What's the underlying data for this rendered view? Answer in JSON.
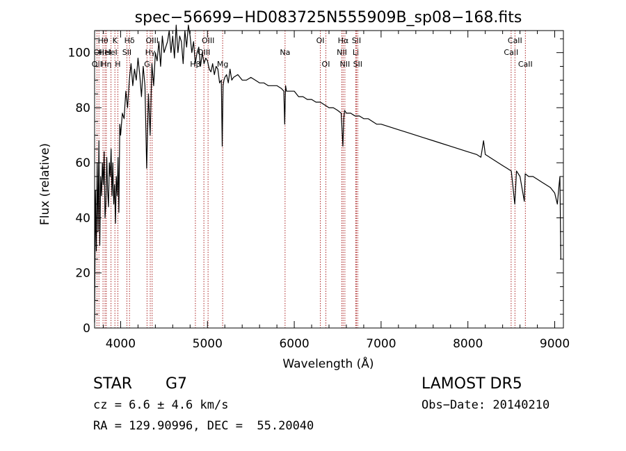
{
  "chart_data": {
    "type": "line",
    "title": "spec−56699−HD083725N555909B_sp08−168.fits",
    "xlabel": "Wavelength (Å)",
    "ylabel": "Flux (relative)",
    "xlim": [
      3700,
      9100
    ],
    "ylim": [
      0,
      108
    ],
    "xticks": [
      4000,
      5000,
      6000,
      7000,
      8000,
      9000
    ],
    "yticks": [
      0,
      20,
      40,
      60,
      80,
      100
    ],
    "grid": false,
    "line_color": "#000000",
    "marker_color": "#aa2222",
    "series": [
      {
        "x": [
          3700,
          3710,
          3720,
          3730,
          3740,
          3750,
          3760,
          3770,
          3780,
          3790,
          3800,
          3810,
          3820,
          3830,
          3840,
          3850,
          3860,
          3870,
          3880,
          3890,
          3900,
          3910,
          3920,
          3930,
          3940,
          3950,
          3960,
          3970,
          3980,
          3990,
          4000,
          4020,
          4040,
          4060,
          4080,
          4100,
          4120,
          4140,
          4160,
          4180,
          4200,
          4220,
          4240,
          4260,
          4280,
          4300,
          4320,
          4340,
          4360,
          4380,
          4400,
          4420,
          4440,
          4460,
          4480,
          4500,
          4520,
          4540,
          4560,
          4580,
          4600,
          4620,
          4640,
          4660,
          4680,
          4700,
          4720,
          4740,
          4760,
          4780,
          4800,
          4820,
          4840,
          4860,
          4880,
          4900,
          4920,
          4940,
          4960,
          4980,
          5000,
          5020,
          5040,
          5060,
          5080,
          5100,
          5120,
          5140,
          5160,
          5170,
          5180,
          5190,
          5200,
          5220,
          5240,
          5260,
          5280,
          5300,
          5350,
          5400,
          5450,
          5500,
          5550,
          5600,
          5650,
          5700,
          5750,
          5800,
          5850,
          5880,
          5890,
          5900,
          5910,
          5950,
          6000,
          6050,
          6100,
          6150,
          6200,
          6250,
          6300,
          6350,
          6400,
          6450,
          6500,
          6540,
          6560,
          6570,
          6580,
          6600,
          6650,
          6700,
          6750,
          6800,
          6850,
          6900,
          6950,
          7000,
          7100,
          7200,
          7300,
          7400,
          7500,
          7600,
          7700,
          7800,
          7900,
          8000,
          8100,
          8150,
          8180,
          8200,
          8250,
          8300,
          8400,
          8450,
          8500,
          8540,
          8560,
          8600,
          8650,
          8660,
          8700,
          8750,
          8800,
          8850,
          8900,
          8950,
          9000,
          9030,
          9050,
          9060,
          9070
        ],
        "y": [
          2,
          50,
          28,
          60,
          35,
          68,
          30,
          55,
          48,
          60,
          52,
          64,
          40,
          45,
          62,
          50,
          44,
          60,
          55,
          65,
          48,
          60,
          45,
          52,
          38,
          55,
          48,
          62,
          42,
          74,
          70,
          78,
          76,
          86,
          80,
          90,
          96,
          88,
          94,
          90,
          98,
          92,
          84,
          95,
          88,
          58,
          85,
          70,
          96,
          88,
          100,
          97,
          104,
          95,
          106,
          100,
          102,
          104,
          108,
          100,
          106,
          98,
          110,
          100,
          106,
          104,
          96,
          108,
          102,
          110,
          106,
          100,
          104,
          96,
          100,
          102,
          95,
          100,
          96,
          98,
          97,
          94,
          93,
          96,
          92,
          95,
          94,
          89,
          90,
          66,
          88,
          90,
          91,
          92,
          89,
          94,
          90,
          91,
          92,
          90,
          90,
          91,
          90,
          89,
          89,
          88,
          88,
          88,
          87,
          86,
          74,
          88,
          86,
          86,
          86,
          84,
          84,
          83,
          83,
          82,
          82,
          81,
          80,
          80,
          79,
          78,
          66,
          76,
          79,
          78,
          78,
          77,
          77,
          76,
          76,
          75,
          74,
          74,
          73,
          72,
          71,
          70,
          69,
          68,
          67,
          66,
          65,
          64,
          63,
          62,
          68,
          63,
          62,
          61,
          59,
          58,
          57,
          45,
          57,
          55,
          46,
          56,
          55,
          55,
          54,
          53,
          52,
          51,
          49,
          45,
          52,
          55,
          25
        ]
      }
    ],
    "lines": [
      {
        "x": 3727,
        "label": "OII",
        "row": 2
      },
      {
        "x": 3750,
        "label": "OII",
        "row": 1
      },
      {
        "x": 3797,
        "label": "Hθ",
        "row": 0
      },
      {
        "x": 3820,
        "label": "HeI",
        "row": 1
      },
      {
        "x": 3835,
        "label": "Hη",
        "row": 2
      },
      {
        "x": 3889,
        "label": "HeI",
        "row": 1
      },
      {
        "x": 3934,
        "label": "K",
        "row": 0
      },
      {
        "x": 3968,
        "label": "H",
        "row": 2
      },
      {
        "x": 4072,
        "label": "SII",
        "row": 1
      },
      {
        "x": 4102,
        "label": "Hδ",
        "row": 0
      },
      {
        "x": 4304,
        "label": "G",
        "row": 2
      },
      {
        "x": 4341,
        "label": "Hγ",
        "row": 1
      },
      {
        "x": 4363,
        "label": "OIII",
        "row": 0
      },
      {
        "x": 4861,
        "label": "Hβ",
        "row": 2
      },
      {
        "x": 4959,
        "label": "OIII",
        "row": 1
      },
      {
        "x": 5007,
        "label": "OIII",
        "row": 0
      },
      {
        "x": 5175,
        "label": "Mg",
        "row": 2
      },
      {
        "x": 5894,
        "label": "Na",
        "row": 1
      },
      {
        "x": 6300,
        "label": "OI",
        "row": 0
      },
      {
        "x": 6364,
        "label": "OI",
        "row": 2
      },
      {
        "x": 6548,
        "label": "NII",
        "row": 1
      },
      {
        "x": 6563,
        "label": "Hα",
        "row": 0
      },
      {
        "x": 6583,
        "label": "NII",
        "row": 2
      },
      {
        "x": 6708,
        "label": "Li",
        "row": 1
      },
      {
        "x": 6716,
        "label": "SII",
        "row": 0
      },
      {
        "x": 6731,
        "label": "SII",
        "row": 2
      },
      {
        "x": 8498,
        "label": "CaII",
        "row": 1
      },
      {
        "x": 8542,
        "label": "CaII",
        "row": 0
      },
      {
        "x": 8662,
        "label": "CaII",
        "row": 2
      }
    ]
  },
  "info": {
    "class": "STAR",
    "subclass": "G7",
    "survey": "LAMOST DR5",
    "cz": "cz = 6.6 ± 4.6 km/s",
    "obs_date": "Obs−Date: 20140210",
    "coords": "RA = 129.90996, DEC =  55.20040"
  }
}
